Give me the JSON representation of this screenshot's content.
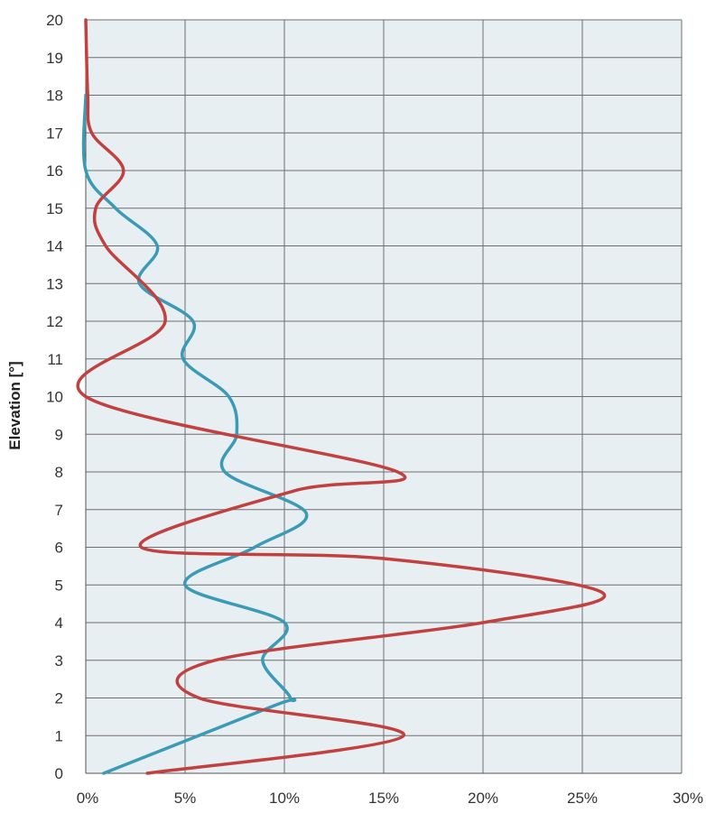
{
  "chart_data": {
    "type": "line",
    "title": "",
    "xlabel": "",
    "ylabel": "Elevation [°]",
    "xlim": [
      0,
      30
    ],
    "ylim": [
      0,
      20
    ],
    "x_ticks": [
      "0%",
      "5%",
      "10%",
      "15%",
      "20%",
      "25%",
      "30%"
    ],
    "y_ticks": [
      "0",
      "1",
      "2",
      "3",
      "4",
      "5",
      "6",
      "7",
      "8",
      "9",
      "10",
      "11",
      "12",
      "13",
      "14",
      "15",
      "16",
      "17",
      "18",
      "19",
      "20"
    ],
    "grid": true,
    "legend": "none",
    "plot_background": "#e8eff3",
    "series": [
      {
        "color": "#3b9ab5",
        "points": [
          {
            "x": 0.9,
            "y": 0.0
          },
          {
            "x": 9.5,
            "y": 1.8
          },
          {
            "x": 10.3,
            "y": 2.0
          },
          {
            "x": 8.9,
            "y": 3.0
          },
          {
            "x": 10.0,
            "y": 4.0
          },
          {
            "x": 5.0,
            "y": 5.0
          },
          {
            "x": 8.5,
            "y": 6.0
          },
          {
            "x": 11.1,
            "y": 6.9
          },
          {
            "x": 7.0,
            "y": 8.0
          },
          {
            "x": 7.6,
            "y": 9.0
          },
          {
            "x": 7.2,
            "y": 10.0
          },
          {
            "x": 4.9,
            "y": 11.0
          },
          {
            "x": 5.4,
            "y": 12.0
          },
          {
            "x": 2.7,
            "y": 13.0
          },
          {
            "x": 3.6,
            "y": 14.0
          },
          {
            "x": 1.5,
            "y": 15.0
          },
          {
            "x": 0.0,
            "y": 16.0
          },
          {
            "x": 0.0,
            "y": 18.0
          }
        ]
      },
      {
        "color": "#c0413f",
        "points": [
          {
            "x": 3.1,
            "y": 0.0
          },
          {
            "x": 16.0,
            "y": 1.0
          },
          {
            "x": 5.7,
            "y": 2.0
          },
          {
            "x": 6.5,
            "y": 3.0
          },
          {
            "x": 20.0,
            "y": 4.0
          },
          {
            "x": 26.0,
            "y": 4.8
          },
          {
            "x": 15.0,
            "y": 5.7
          },
          {
            "x": 2.8,
            "y": 6.0
          },
          {
            "x": 10.5,
            "y": 7.5
          },
          {
            "x": 15.7,
            "y": 8.0
          },
          {
            "x": 0.0,
            "y": 10.0
          },
          {
            "x": 4.0,
            "y": 12.0
          },
          {
            "x": 1.0,
            "y": 14.0
          },
          {
            "x": 0.5,
            "y": 15.0
          },
          {
            "x": 1.9,
            "y": 16.0
          },
          {
            "x": 0.3,
            "y": 17.0
          },
          {
            "x": 0.1,
            "y": 18.0
          },
          {
            "x": 0.0,
            "y": 20.0
          }
        ]
      }
    ]
  }
}
